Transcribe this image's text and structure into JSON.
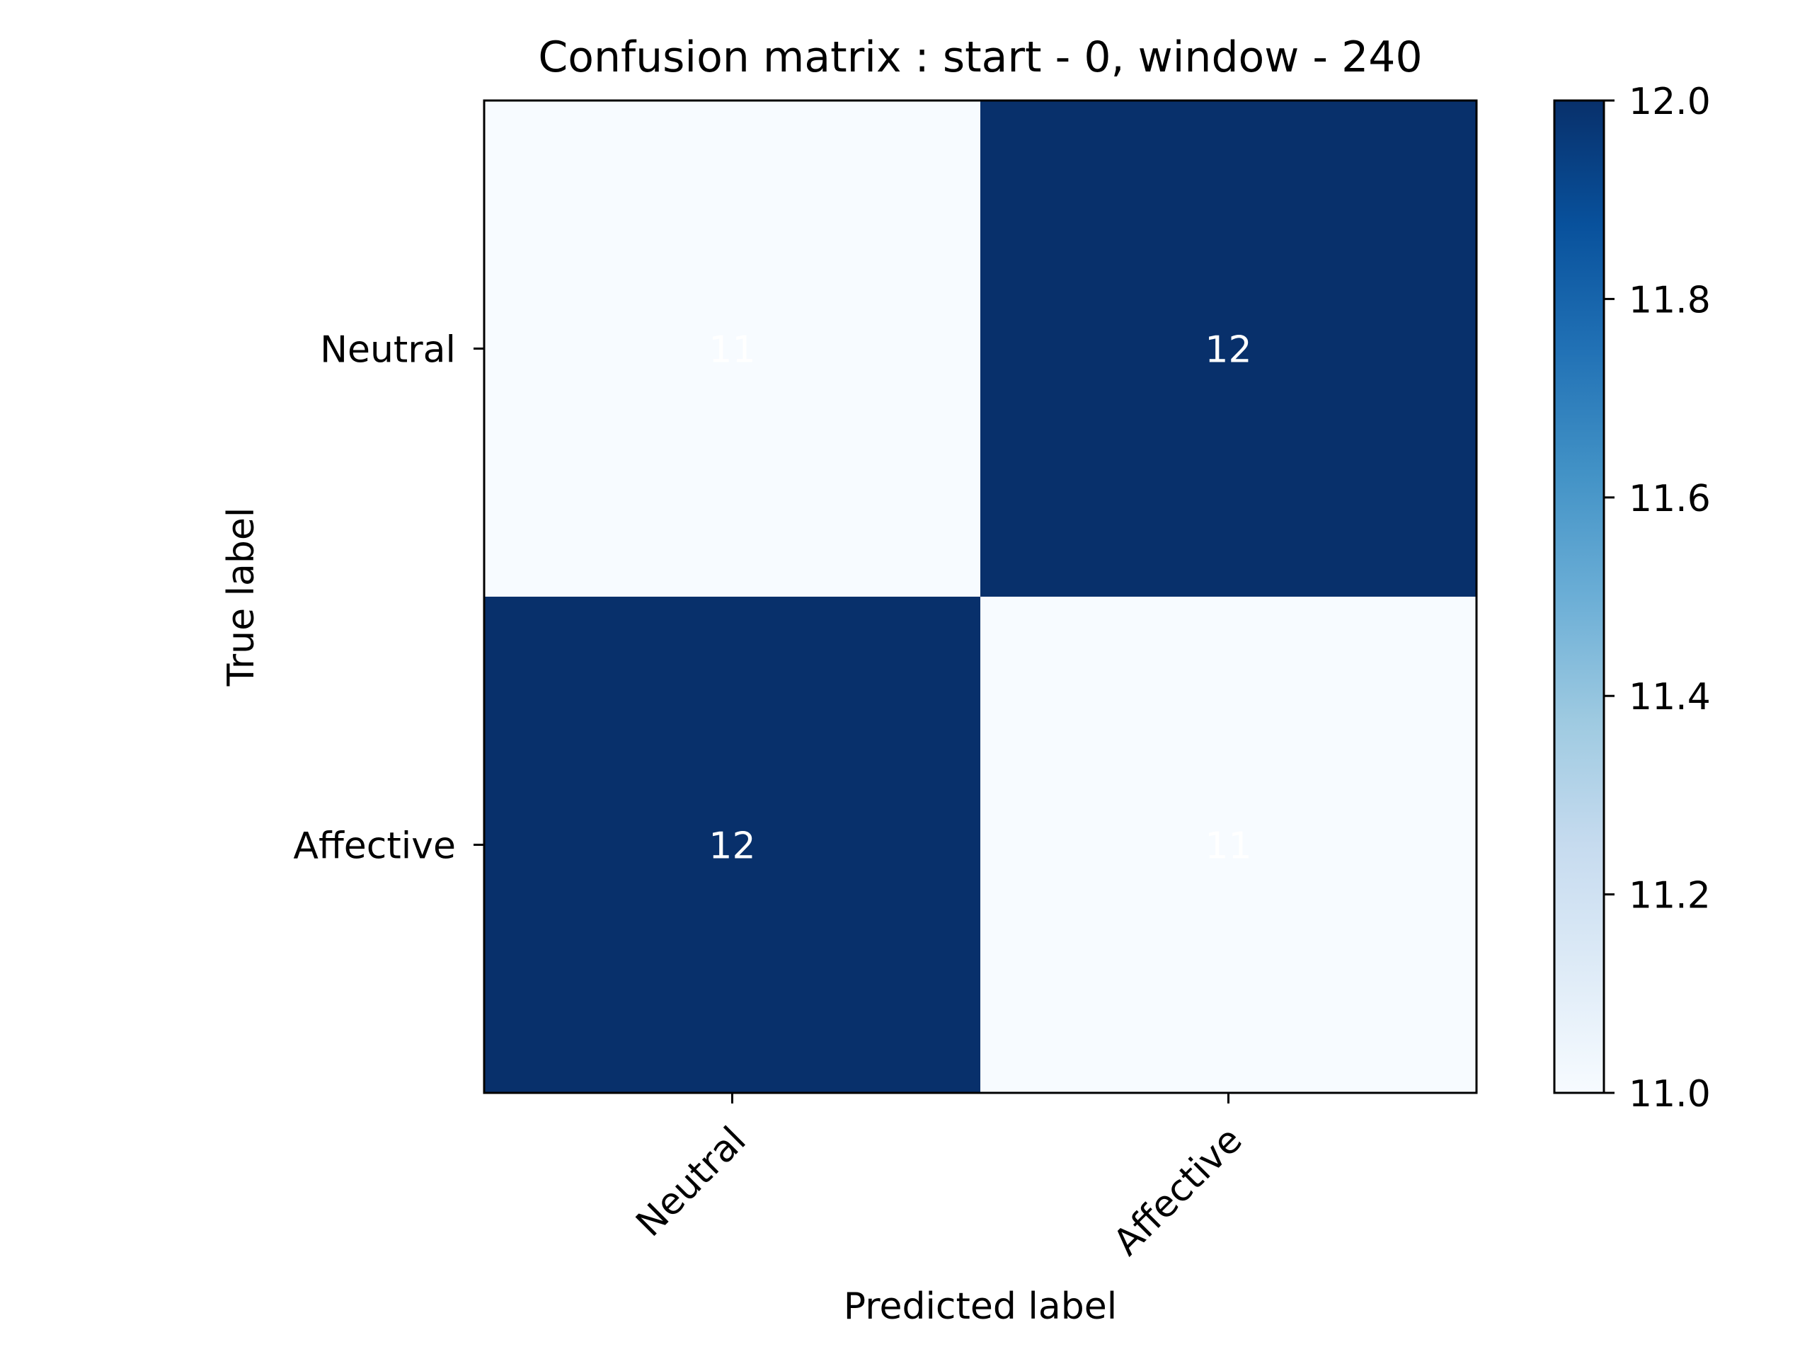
{
  "chart_data": {
    "type": "heatmap",
    "title": "Confusion matrix : start - 0, window - 240",
    "xlabel": "Predicted label",
    "ylabel": "True label",
    "x_categories": [
      "Neutral",
      "Affective"
    ],
    "y_categories": [
      "Neutral",
      "Affective"
    ],
    "matrix": [
      [
        11,
        12
      ],
      [
        12,
        11
      ]
    ],
    "cell_labels": [
      [
        "11",
        "12"
      ],
      [
        "12",
        "11"
      ]
    ],
    "colormap": "Blues",
    "colorbar": {
      "range": [
        11.0,
        12.0
      ],
      "ticks": [
        11.0,
        11.2,
        11.4,
        11.6,
        11.8,
        12.0
      ],
      "tick_labels": [
        "11.0",
        "11.2",
        "11.4",
        "11.6",
        "11.8",
        "12.0"
      ]
    },
    "colors": {
      "low": "#f7fbff",
      "high": "#08306b",
      "cell_text": "#ffffff",
      "axes": "#000000"
    }
  }
}
